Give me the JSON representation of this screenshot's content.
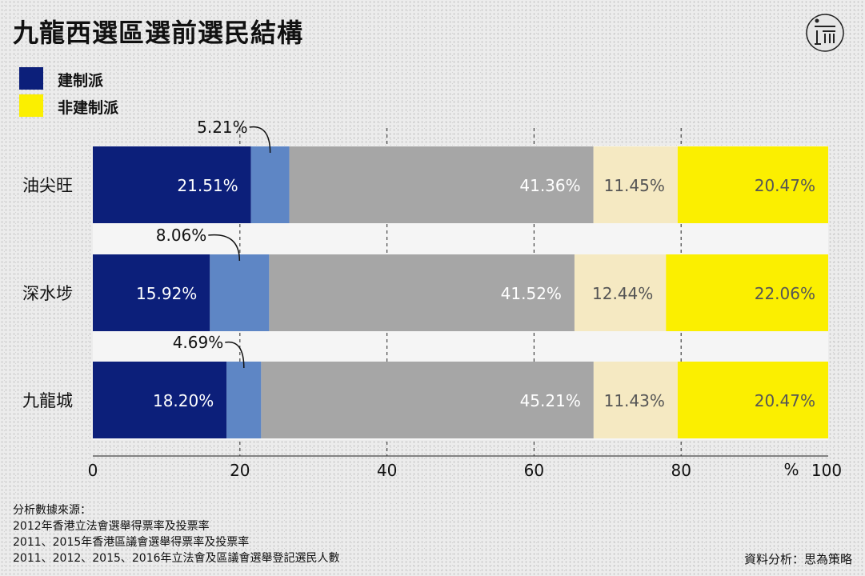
{
  "header": {
    "title": "九龍西選區選前選民結構"
  },
  "legend": {
    "items": [
      {
        "label": "建制派",
        "color": "#0c1f7a"
      },
      {
        "label": "非建制派",
        "color": "#fbef00"
      }
    ]
  },
  "colors": {
    "seg": [
      "#0c1f7a",
      "#5e86c5",
      "#a6a6a6",
      "#f5e9c2",
      "#fbef00"
    ],
    "seg_text": [
      "#ffffff",
      "#ffffff",
      "#ffffff",
      "#555555",
      "#555555"
    ]
  },
  "chart_data": {
    "type": "bar",
    "orientation": "horizontal",
    "stacked": true,
    "categories": [
      "油尖旺",
      "深水埗",
      "九龍城"
    ],
    "series": [
      {
        "values": [
          21.51,
          15.92,
          18.2
        ]
      },
      {
        "values": [
          5.21,
          8.06,
          4.69
        ]
      },
      {
        "values": [
          41.36,
          41.52,
          45.21
        ]
      },
      {
        "values": [
          11.45,
          12.44,
          11.43
        ]
      },
      {
        "values": [
          20.47,
          22.06,
          20.47
        ]
      }
    ],
    "xlim": [
      0,
      100
    ],
    "xticks": [
      "0",
      "20",
      "40",
      "60",
      "80",
      "100"
    ],
    "xlabel": "%",
    "grid": "vertical dashed"
  },
  "footer": {
    "sources_lines": [
      "分析數據來源：",
      "2012年香港立法會選舉得票率及投票率",
      "2011、2015年香港區議會選舉得票率及投票率",
      "2011、2012、2015、2016年立法會及區議會選舉登記選民人數"
    ],
    "credit": "資料分析：思為策略"
  }
}
